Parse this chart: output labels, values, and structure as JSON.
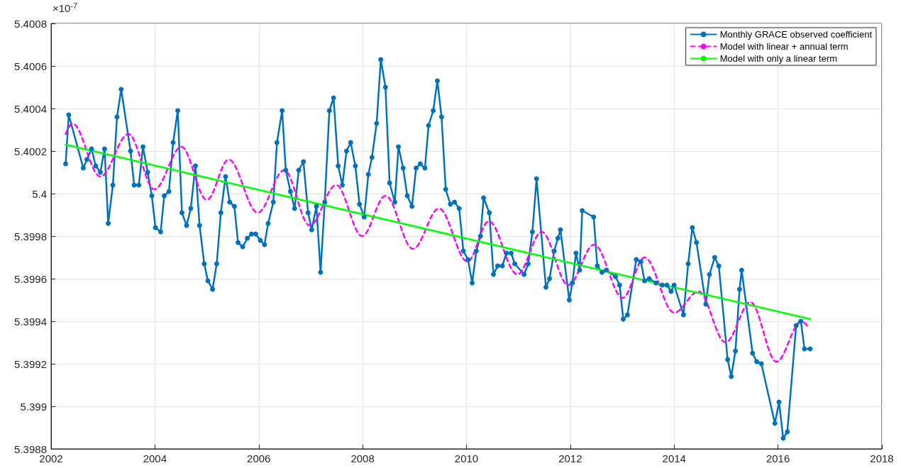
{
  "chart_data": {
    "type": "line",
    "annotations": [
      "×10$^{-7}$"
    ],
    "xlim": [
      2002,
      2018
    ],
    "xticks": [
      2002,
      2004,
      2006,
      2008,
      2010,
      2012,
      2014,
      2016,
      2018
    ],
    "ylim": [
      5.3988,
      5.4008
    ],
    "yticks": [
      5.3988,
      5.399,
      5.3992,
      5.3994,
      5.3996,
      5.3998,
      5.4,
      5.4002,
      5.4004,
      5.4006,
      5.4008
    ],
    "grid": true,
    "legend": "top right",
    "series": [
      {
        "name": "Monthly GRACE observed coefficient",
        "color": "#0072bd",
        "marker": "circle",
        "line_style": "solid",
        "x": [
          2002.28,
          2002.34,
          2002.62,
          2002.69,
          2002.78,
          2002.86,
          2002.95,
          2003.03,
          2003.1,
          2003.19,
          2003.27,
          2003.35,
          2003.53,
          2003.6,
          2003.69,
          2003.77,
          2003.86,
          2003.94,
          2004.01,
          2004.11,
          2004.18,
          2004.27,
          2004.35,
          2004.44,
          2004.52,
          2004.61,
          2004.69,
          2004.78,
          2004.86,
          2004.95,
          2005.02,
          2005.11,
          2005.19,
          2005.27,
          2005.36,
          2005.44,
          2005.53,
          2005.6,
          2005.69,
          2005.78,
          2005.86,
          2005.94,
          2006.03,
          2006.11,
          2006.18,
          2006.28,
          2006.35,
          2006.45,
          2006.52,
          2006.61,
          2006.69,
          2006.77,
          2006.86,
          2006.95,
          2007.02,
          2007.11,
          2007.19,
          2007.27,
          2007.36,
          2007.44,
          2007.53,
          2007.61,
          2007.69,
          2007.77,
          2007.86,
          2007.94,
          2008.03,
          2008.11,
          2008.18,
          2008.27,
          2008.35,
          2008.44,
          2008.52,
          2008.62,
          2008.69,
          2008.78,
          2008.86,
          2008.95,
          2009.03,
          2009.11,
          2009.2,
          2009.27,
          2009.36,
          2009.44,
          2009.52,
          2009.6,
          2009.69,
          2009.77,
          2009.86,
          2009.94,
          2010.03,
          2010.11,
          2010.19,
          2010.27,
          2010.33,
          2010.44,
          2010.52,
          2010.6,
          2010.69,
          2010.77,
          2010.86,
          2010.93,
          2011.11,
          2011.19,
          2011.27,
          2011.35,
          2011.53,
          2011.6,
          2011.69,
          2011.76,
          2011.81,
          2011.98,
          2012.04,
          2012.11,
          2012.18,
          2012.23,
          2012.45,
          2012.52,
          2012.61,
          2012.69,
          2012.87,
          2012.95,
          2013.02,
          2013.1,
          2013.27,
          2013.36,
          2013.43,
          2013.52,
          2013.65,
          2013.77,
          2013.86,
          2013.94,
          2014.0,
          2014.18,
          2014.27,
          2014.35,
          2014.43,
          2014.61,
          2014.68,
          2014.78,
          2014.86,
          2015.03,
          2015.1,
          2015.18,
          2015.26,
          2015.3,
          2015.51,
          2015.59,
          2015.68,
          2015.94,
          2016.02,
          2016.1,
          2016.18,
          2016.35,
          2016.44,
          2016.51,
          2016.62
        ],
        "values": [
          5.40014,
          5.40037,
          5.40012,
          5.40016,
          5.40021,
          5.40013,
          5.4001,
          5.40021,
          5.39986,
          5.40004,
          5.40036,
          5.40049,
          5.4002,
          5.40004,
          5.40004,
          5.40022,
          5.4001,
          5.39999,
          5.39984,
          5.39982,
          5.39999,
          5.40001,
          5.40024,
          5.40039,
          5.39991,
          5.39985,
          5.39993,
          5.40013,
          5.39985,
          5.39967,
          5.39959,
          5.39955,
          5.39967,
          5.39991,
          5.40008,
          5.39996,
          5.39994,
          5.39977,
          5.39975,
          5.39979,
          5.39981,
          5.39981,
          5.39978,
          5.39976,
          5.39986,
          5.39996,
          5.40024,
          5.40039,
          5.40011,
          5.40001,
          5.39993,
          5.40011,
          5.40015,
          5.39991,
          5.39983,
          5.39994,
          5.39963,
          5.39996,
          5.40039,
          5.40045,
          5.40013,
          5.40004,
          5.4002,
          5.40024,
          5.40013,
          5.39995,
          5.39989,
          5.40009,
          5.40017,
          5.40033,
          5.40063,
          5.4005,
          5.40005,
          5.39996,
          5.40022,
          5.40012,
          5.39999,
          5.39994,
          5.40012,
          5.40014,
          5.40012,
          5.40032,
          5.40039,
          5.40053,
          5.40036,
          5.40002,
          5.39995,
          5.39996,
          5.39993,
          5.39973,
          5.39969,
          5.39958,
          5.39973,
          5.3998,
          5.39998,
          5.39991,
          5.39962,
          5.39966,
          5.39966,
          5.39972,
          5.39972,
          5.39967,
          5.39962,
          5.39967,
          5.39982,
          5.40007,
          5.39956,
          5.3996,
          5.39973,
          5.39979,
          5.39983,
          5.3995,
          5.39958,
          5.39972,
          5.39964,
          5.39992,
          5.39989,
          5.39966,
          5.39963,
          5.39964,
          5.39961,
          5.39957,
          5.39941,
          5.39943,
          5.39969,
          5.39968,
          5.39959,
          5.3996,
          5.39958,
          5.39957,
          5.39957,
          5.39954,
          5.39957,
          5.39943,
          5.39967,
          5.39984,
          5.39977,
          5.39948,
          5.39962,
          5.3997,
          5.39966,
          5.39922,
          5.39914,
          5.39926,
          5.39955,
          5.39964,
          5.39925,
          5.39921,
          5.3992,
          5.39892,
          5.39902,
          5.39885,
          5.39888,
          5.39938,
          5.3994,
          5.39927,
          5.39927
        ]
      },
      {
        "name": "Model with linear + annual term",
        "color": "#ff00ff",
        "marker": "none",
        "line_style": "dashed",
        "x": [
          2002.28,
          2002.41,
          2002.95,
          2003.49,
          2003.99,
          2004.51,
          2005.0,
          2005.42,
          2005.98,
          2006.49,
          2006.98,
          2007.49,
          2007.99,
          2008.44,
          2008.97,
          2009.47,
          2010.02,
          2010.43,
          2010.98,
          2011.45,
          2011.96,
          2012.46,
          2013.01,
          2013.43,
          2014.0,
          2014.47,
          2014.99,
          2015.47,
          2015.97,
          2016.45,
          2016.59
        ],
        "values": [
          5.40028,
          5.40033,
          5.40008,
          5.40028,
          5.40002,
          5.40022,
          5.39997,
          5.40016,
          5.39991,
          5.40011,
          5.39985,
          5.40004,
          5.3998,
          5.39999,
          5.39974,
          5.39993,
          5.39968,
          5.39987,
          5.39962,
          5.39982,
          5.39957,
          5.39976,
          5.39951,
          5.3997,
          5.39944,
          5.39954,
          5.3993,
          5.39949,
          5.39921,
          5.3994,
          5.39937
        ]
      },
      {
        "name": "Model with only a linear term",
        "color": "#00ff00",
        "marker": "none",
        "line_style": "solid",
        "x": [
          2002.28,
          2016.62
        ],
        "values": [
          5.40023,
          5.39941
        ]
      }
    ]
  }
}
